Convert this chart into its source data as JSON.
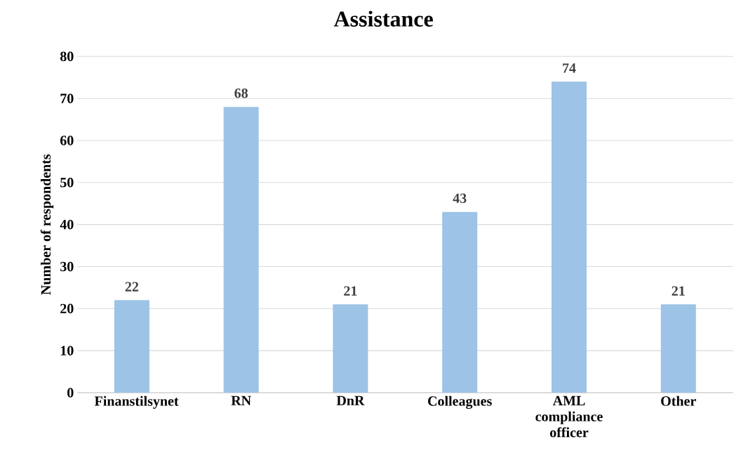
{
  "chart_data": {
    "type": "bar",
    "title": "Assistance",
    "ylabel": "Number of respondents",
    "categories": [
      "Finanstilsynet",
      "RN",
      "DnR",
      "Colleagues",
      "AML compliance officer",
      "Other"
    ],
    "values": [
      22,
      68,
      21,
      43,
      74,
      21
    ],
    "color": "#9dc3e6",
    "ylim": [
      0,
      80
    ],
    "yticks": [
      0,
      10,
      20,
      30,
      40,
      50,
      60,
      70,
      80
    ],
    "grid": "y",
    "data_labels": true
  }
}
